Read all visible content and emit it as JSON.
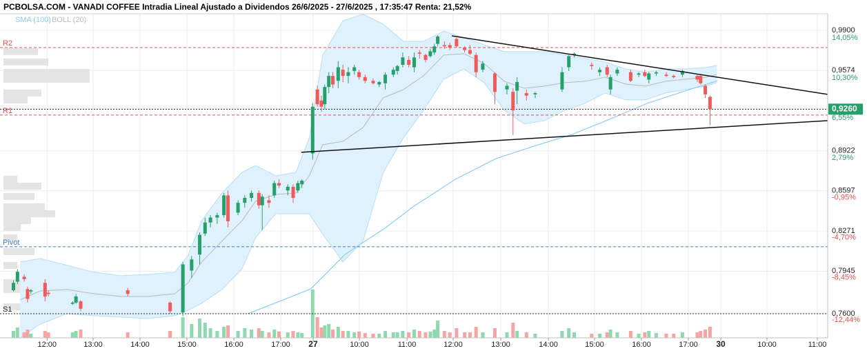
{
  "chart_data": {
    "type": "candlestick",
    "title": "PCBOLSA.COM - VANADI COFFEE Intradia Lineal Ajustado a Dividendos 26/6/2025 - 27/6/2025 , 17:35:47 Renta: 21,52%",
    "grid": true,
    "xlim": [
      0,
      123.1
    ],
    "xticks": [
      {
        "value": 7.0,
        "label": "12:00"
      },
      {
        "value": 13.85,
        "label": "13:00"
      },
      {
        "value": 20.82,
        "label": "14:00"
      },
      {
        "value": 27.8,
        "label": "15:00"
      },
      {
        "value": 34.78,
        "label": "16:00"
      },
      {
        "value": 41.75,
        "label": "17:00"
      },
      46.57,
      {
        "value": 53.45,
        "label": "10:00"
      },
      {
        "value": 60.53,
        "label": "11:00"
      },
      {
        "value": 67.4,
        "label": "12:00"
      },
      {
        "value": 74.48,
        "label": "13:00"
      },
      {
        "value": 81.56,
        "label": "14:00"
      },
      {
        "value": 88.43,
        "label": "15:00"
      },
      {
        "value": 95.4,
        "label": "16:00"
      },
      {
        "value": 102.38,
        "label": "17:00"
      },
      107.2,
      {
        "value": 114.07,
        "label": "10:00"
      },
      {
        "value": 121.56,
        "label": "11:00"
      }
    ],
    "xtick_day_labels": [
      {
        "tick": 6,
        "label": "27"
      },
      {
        "tick": 15,
        "label": "30"
      }
    ],
    "ylim": [
      0.7404,
      1.0034
    ],
    "yticks": [
      {
        "value": 0.99,
        "label": "0,9900"
      },
      {
        "value": 0.9574,
        "label": "0,9574"
      },
      {
        "value": 0.8922,
        "label": "0,8922"
      },
      {
        "value": 0.8597,
        "label": "0,8597"
      },
      {
        "value": 0.8271,
        "label": "0,8271"
      },
      {
        "value": 0.7945,
        "label": "0,7945"
      },
      {
        "value": 0.76,
        "label": "0,7600"
      }
    ],
    "y2lim": [
      -14.12,
      16.32
    ],
    "y2ticks": [
      {
        "value": 14.05,
        "label": "14,05%"
      },
      {
        "value": 10.3,
        "label": "10,30%"
      },
      {
        "value": 6.55,
        "label": "6,55%"
      },
      {
        "value": 2.79,
        "label": "2,79%"
      },
      {
        "value": -0.95,
        "label": "-0,95%"
      },
      {
        "value": -4.7,
        "label": "-4,70%"
      },
      {
        "value": -8.45,
        "label": "-8,45%"
      },
      {
        "value": -12.44,
        "label": "-12,44%"
      }
    ],
    "candles": {
      "up_color": "#26a06b",
      "down_color": "#f05a5a",
      "up_volume_color": "#8fd9b0",
      "down_volume_color": "#f6a5a5",
      "volume_lim": [
        0,
        100
      ],
      "x": [
        2.0,
        2.6,
        3.6,
        4.1,
        4.6,
        6.7,
        7.2,
        10.8,
        11.3,
        12.0,
        19.0,
        25.3,
        27.2,
        28.5,
        29.7,
        30.5,
        31.3,
        32.3,
        33.3,
        33.9,
        35.4,
        36.4,
        37.4,
        38.5,
        39.0,
        40.0,
        40.8,
        41.5,
        42.8,
        43.6,
        44.3,
        44.9,
        46.5,
        47.2,
        47.8,
        48.3,
        48.9,
        49.5,
        50.3,
        51.0,
        51.8,
        52.7,
        53.4,
        54.3,
        55.5,
        56.4,
        57.3,
        58.5,
        59.1,
        59.9,
        60.8,
        61.6,
        62.4,
        63.3,
        64.0,
        64.6,
        65.1,
        66.1,
        66.9,
        67.9,
        69.1,
        69.9,
        70.8,
        71.8,
        73.6,
        75.4,
        76.3,
        76.9,
        78.3,
        79.6,
        83.6,
        84.6,
        85.4,
        88.0,
        89.2,
        90.3,
        90.8,
        91.8,
        93.8,
        95.0,
        95.9,
        96.5,
        97.6,
        99.1,
        100.2,
        101.5,
        103.7,
        104.2,
        104.9,
        105.6
      ],
      "open": [
        0.779,
        0.786,
        0.79,
        0.78,
        0.778,
        0.785,
        0.777,
        0.768,
        0.769,
        0.77,
        0.779,
        0.769,
        0.761,
        0.795,
        0.808,
        0.825,
        0.834,
        0.838,
        0.84,
        0.856,
        0.842,
        0.85,
        0.854,
        0.858,
        0.848,
        0.852,
        0.856,
        0.866,
        0.86,
        0.863,
        0.86,
        0.865,
        0.89,
        0.942,
        0.933,
        0.93,
        0.944,
        0.953,
        0.949,
        0.958,
        0.953,
        0.957,
        0.956,
        0.952,
        0.949,
        0.946,
        0.947,
        0.954,
        0.957,
        0.962,
        0.966,
        0.96,
        0.972,
        0.97,
        0.969,
        0.972,
        0.979,
        0.978,
        0.978,
        0.983,
        0.976,
        0.974,
        0.97,
        0.958,
        0.955,
        0.942,
        0.94,
        0.941,
        0.939,
        0.938,
        0.942,
        0.96,
        0.97,
        0.962,
        0.956,
        0.96,
        0.942,
        0.955,
        0.956,
        0.954,
        0.956,
        0.95,
        0.955,
        0.954,
        0.953,
        0.954,
        0.953,
        0.953,
        0.945,
        0.936
      ],
      "high": [
        0.787,
        0.796,
        0.792,
        0.782,
        0.78,
        0.788,
        0.779,
        0.77,
        0.776,
        0.771,
        0.781,
        0.77,
        0.802,
        0.807,
        0.826,
        0.838,
        0.84,
        0.842,
        0.858,
        0.86,
        0.852,
        0.856,
        0.86,
        0.86,
        0.857,
        0.856,
        0.868,
        0.869,
        0.865,
        0.865,
        0.868,
        0.869,
        0.931,
        0.945,
        0.937,
        0.946,
        0.956,
        0.956,
        0.965,
        0.962,
        0.96,
        0.962,
        0.958,
        0.954,
        0.951,
        0.949,
        0.956,
        0.96,
        0.962,
        0.972,
        0.969,
        0.972,
        0.974,
        0.971,
        0.975,
        0.979,
        0.986,
        0.981,
        0.98,
        0.984,
        0.977,
        0.978,
        0.972,
        0.965,
        0.956,
        0.947,
        0.943,
        0.952,
        0.942,
        0.94,
        0.96,
        0.97,
        0.972,
        0.964,
        0.96,
        0.962,
        0.954,
        0.96,
        0.958,
        0.956,
        0.958,
        0.956,
        0.957,
        0.956,
        0.954,
        0.958,
        0.954,
        0.954,
        0.946,
        0.937
      ],
      "low": [
        0.778,
        0.784,
        0.786,
        0.769,
        0.776,
        0.77,
        0.774,
        0.767,
        0.768,
        0.762,
        0.774,
        0.76,
        0.758,
        0.789,
        0.8,
        0.823,
        0.83,
        0.833,
        0.838,
        0.83,
        0.84,
        0.846,
        0.851,
        0.845,
        0.828,
        0.846,
        0.854,
        0.862,
        0.856,
        0.85,
        0.858,
        0.862,
        0.885,
        0.928,
        0.924,
        0.926,
        0.939,
        0.943,
        0.943,
        0.948,
        0.947,
        0.954,
        0.95,
        0.947,
        0.946,
        0.944,
        0.942,
        0.952,
        0.954,
        0.96,
        0.96,
        0.956,
        0.967,
        0.964,
        0.968,
        0.97,
        0.977,
        0.975,
        0.974,
        0.976,
        0.972,
        0.97,
        0.952,
        0.956,
        0.93,
        0.938,
        0.905,
        0.93,
        0.933,
        0.935,
        0.94,
        0.957,
        0.968,
        0.958,
        0.953,
        0.952,
        0.938,
        0.953,
        0.948,
        0.952,
        0.952,
        0.947,
        0.953,
        0.952,
        0.951,
        0.952,
        0.948,
        0.946,
        0.935,
        0.913
      ],
      "close": [
        0.785,
        0.794,
        0.788,
        0.772,
        0.779,
        0.774,
        0.776,
        0.769,
        0.774,
        0.764,
        0.776,
        0.762,
        0.8,
        0.804,
        0.824,
        0.834,
        0.838,
        0.84,
        0.856,
        0.835,
        0.85,
        0.854,
        0.858,
        0.848,
        0.855,
        0.85,
        0.866,
        0.864,
        0.863,
        0.854,
        0.866,
        0.868,
        0.928,
        0.93,
        0.928,
        0.944,
        0.953,
        0.946,
        0.96,
        0.953,
        0.956,
        0.96,
        0.952,
        0.949,
        0.947,
        0.948,
        0.954,
        0.958,
        0.961,
        0.968,
        0.962,
        0.968,
        0.971,
        0.966,
        0.973,
        0.977,
        0.985,
        0.977,
        0.976,
        0.977,
        0.974,
        0.971,
        0.956,
        0.963,
        0.94,
        0.945,
        0.925,
        0.948,
        0.937,
        0.939,
        0.956,
        0.969,
        0.971,
        0.961,
        0.958,
        0.954,
        0.952,
        0.958,
        0.949,
        0.955,
        0.953,
        0.955,
        0.956,
        0.953,
        0.952,
        0.957,
        0.95,
        0.947,
        0.938,
        0.926
      ],
      "volume": [
        10,
        15,
        8,
        12,
        6,
        10,
        8,
        8,
        10,
        12,
        8,
        10,
        30,
        20,
        28,
        22,
        14,
        10,
        16,
        18,
        10,
        14,
        12,
        14,
        10,
        8,
        12,
        9,
        8,
        10,
        8,
        7,
        70,
        30,
        15,
        18,
        20,
        12,
        16,
        10,
        10,
        8,
        9,
        7,
        6,
        6,
        10,
        8,
        8,
        10,
        8,
        12,
        10,
        8,
        9,
        12,
        25,
        10,
        8,
        14,
        8,
        8,
        16,
        8,
        14,
        8,
        22,
        10,
        8,
        6,
        10,
        14,
        8,
        6,
        6,
        8,
        12,
        8,
        10,
        6,
        8,
        10,
        7,
        6,
        6,
        8,
        8,
        10,
        12,
        16
      ]
    },
    "sma": {
      "name": "SMA (100)",
      "color": "#8ccdf0",
      "x": [
        36.9,
        46.2,
        51.3,
        57.4,
        61.5,
        67.7,
        73.8,
        80.0,
        85.1,
        90.3,
        96.4,
        102.6,
        106.7
      ],
      "values": [
        0.76,
        0.78,
        0.808,
        0.83,
        0.847,
        0.869,
        0.886,
        0.897,
        0.9055,
        0.917,
        0.931,
        0.942,
        0.949
      ]
    },
    "boll": {
      "name": "BOLL (20)",
      "color": "#bbbbbb",
      "band_color": "#b9def5",
      "fill": "#dff1fc",
      "x": [
        3,
        6,
        10,
        14,
        18,
        22,
        26,
        28,
        30,
        33,
        36,
        38,
        41,
        44,
        46,
        48,
        51,
        54,
        57,
        60,
        63,
        66,
        69,
        72,
        75,
        78,
        81,
        84,
        87,
        90,
        93,
        96,
        99,
        102,
        105,
        106.6
      ],
      "upper": [
        0.802,
        0.8048,
        0.7992,
        0.7936,
        0.7908,
        0.7919,
        0.7936,
        0.8076,
        0.8355,
        0.8579,
        0.8747,
        0.8803,
        0.8719,
        0.8747,
        0.9027,
        0.9699,
        0.9978,
        1.003,
        0.995,
        0.981,
        0.981,
        0.9894,
        0.9838,
        0.9782,
        0.9727,
        0.9727,
        0.9727,
        0.9699,
        0.9671,
        0.9643,
        0.9587,
        0.9559,
        0.9587,
        0.9587,
        0.9598,
        0.9615
      ],
      "middle": [
        0.7712,
        0.7785,
        0.7796,
        0.7762,
        0.774,
        0.774,
        0.7762,
        0.7852,
        0.802,
        0.8188,
        0.8355,
        0.8512,
        0.8568,
        0.8579,
        0.8719,
        0.8971,
        0.8999,
        0.9111,
        0.9352,
        0.9419,
        0.9531,
        0.9699,
        0.971,
        0.9631,
        0.9486,
        0.943,
        0.9447,
        0.9475,
        0.9486,
        0.9519,
        0.9464,
        0.9447,
        0.9486,
        0.9503,
        0.9519,
        0.9542
      ],
      "lower": [
        0.7404,
        0.7516,
        0.76,
        0.7583,
        0.7572,
        0.7561,
        0.7583,
        0.7628,
        0.7684,
        0.7796,
        0.7964,
        0.8216,
        0.8411,
        0.8411,
        0.8411,
        0.8244,
        0.802,
        0.8188,
        0.8747,
        0.9027,
        0.9251,
        0.9503,
        0.9587,
        0.9475,
        0.9251,
        0.9139,
        0.9167,
        0.9251,
        0.9307,
        0.9391,
        0.9335,
        0.9335,
        0.9391,
        0.9419,
        0.9447,
        0.9475
      ]
    },
    "levels": [
      {
        "name": "R2",
        "value": 0.976,
        "color": "#e05050"
      },
      {
        "name": "R1",
        "value": 0.9212,
        "color": "#e05050"
      },
      {
        "name": "Pivot",
        "value": 0.8143,
        "color": "#3a7fd0"
      },
      {
        "name": "S1",
        "value": 0.76,
        "color": "#222222"
      }
    ],
    "last_price": {
      "value": 0.926,
      "label": "0,9260",
      "color": "#26a06b"
    },
    "trendlines": [
      {
        "x": [
          44.8,
          123.1
        ],
        "values": [
          0.891,
          0.9167
        ]
      },
      {
        "x": [
          67.2,
          123.1
        ],
        "values": [
          0.9855,
          0.938
        ]
      }
    ],
    "volume_profile": {
      "color": "#e4e4e4",
      "lim": [
        0,
        100
      ],
      "prices": [
        0.9727,
        0.9643,
        0.9559,
        0.9503,
        0.9391,
        0.9335,
        0.8691,
        0.8635,
        0.8551,
        0.8467,
        0.8411,
        0.8355,
        0.83,
        0.8216,
        0.8104,
        0.7992,
        0.7852,
        0.7796,
        0.7656
      ],
      "values": [
        40,
        52,
        100,
        100,
        44,
        28,
        16,
        44,
        36,
        48,
        60,
        32,
        20,
        16,
        36,
        16,
        56,
        52,
        24
      ]
    }
  }
}
